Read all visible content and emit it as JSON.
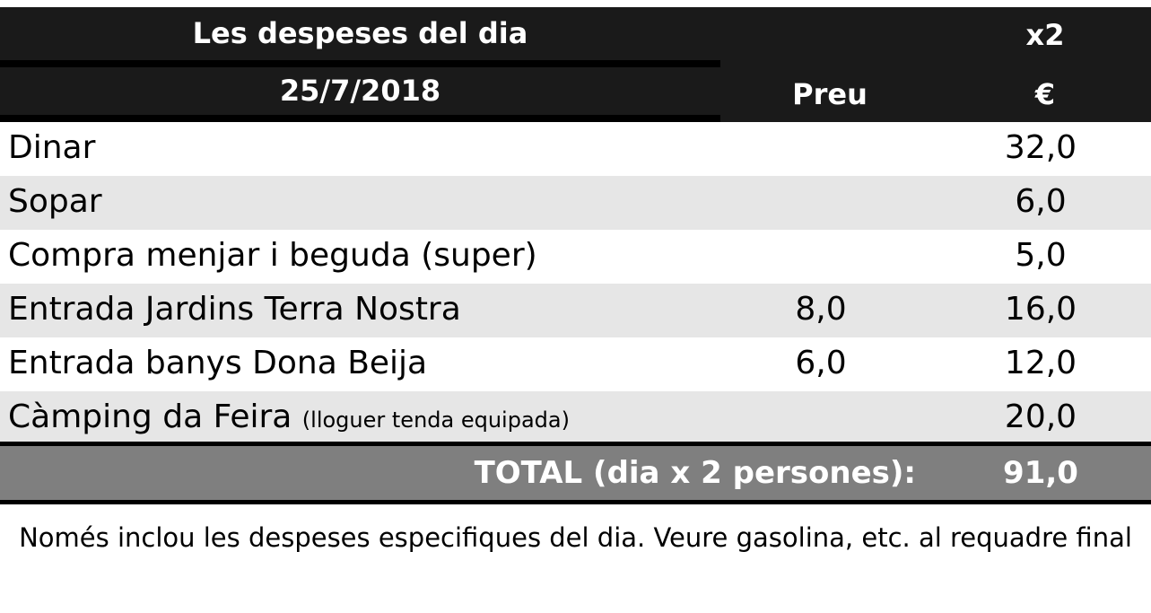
{
  "header": {
    "title": "Les despeses del dia",
    "date": "25/7/2018",
    "col_preu": "Preu",
    "col_x2": "x2",
    "col_currency": "€"
  },
  "rows": [
    {
      "label": "Dinar",
      "note": "",
      "preu": "",
      "x2": "32,0"
    },
    {
      "label": "Sopar",
      "note": "",
      "preu": "",
      "x2": "6,0"
    },
    {
      "label": "Compra menjar i beguda (super)",
      "note": "",
      "preu": "",
      "x2": "5,0"
    },
    {
      "label": "Entrada Jardins Terra Nostra",
      "note": "",
      "preu": "8,0",
      "x2": "16,0"
    },
    {
      "label": "Entrada banys Dona Beija",
      "note": "",
      "preu": "6,0",
      "x2": "12,0"
    },
    {
      "label": "Càmping da Feira",
      "note": "(lloguer tenda equipada)",
      "preu": "",
      "x2": "20,0"
    }
  ],
  "total": {
    "label": "TOTAL (dia x 2 persones):",
    "value": "91,0"
  },
  "footnote": "Només inclou les despeses especifiques del dia. Veure gasolina, etc. al requadre final",
  "colors": {
    "header_bg": "#1a1a1a",
    "alt_row_bg": "#e6e6e6",
    "total_bg": "#7f7f7f"
  }
}
